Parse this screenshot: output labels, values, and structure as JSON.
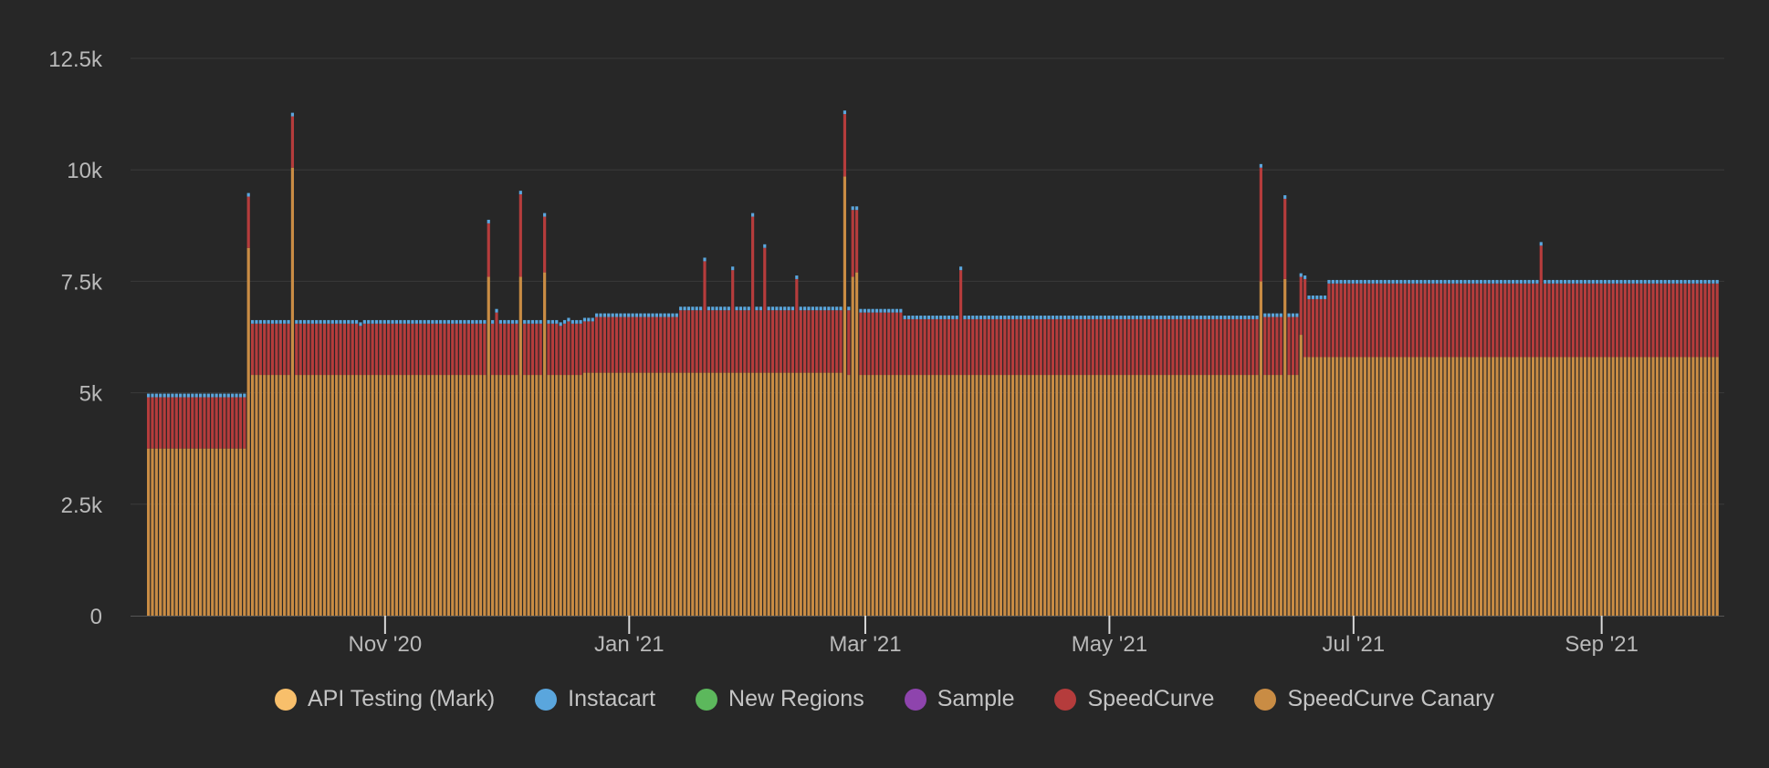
{
  "chart_data": {
    "type": "bar",
    "stacked": true,
    "xlabel": "",
    "ylabel": "",
    "ylim": [
      0,
      12500
    ],
    "y_ticks": [
      {
        "value": 0,
        "label": "0"
      },
      {
        "value": 2500,
        "label": "2.5k"
      },
      {
        "value": 5000,
        "label": "5k"
      },
      {
        "value": 7500,
        "label": "7.5k"
      },
      {
        "value": 10000,
        "label": "10k"
      },
      {
        "value": 12500,
        "label": "12.5k"
      }
    ],
    "x_range": [
      "2020-09-03",
      "2021-09-30"
    ],
    "x_ticks": [
      {
        "date": "2020-11-01",
        "label": "Nov '20"
      },
      {
        "date": "2021-01-01",
        "label": "Jan '21"
      },
      {
        "date": "2021-03-01",
        "label": "Mar '21"
      },
      {
        "date": "2021-05-01",
        "label": "May '21"
      },
      {
        "date": "2021-07-01",
        "label": "Jul '21"
      },
      {
        "date": "2021-09-01",
        "label": "Sep '21"
      }
    ],
    "grid": true,
    "legend_position": "bottom-center",
    "series": [
      {
        "name": "API Testing (Mark)",
        "color": "#f8bf6b",
        "segments": [
          {
            "from": "2020-09-03",
            "to": "2021-09-30",
            "value": 0
          }
        ]
      },
      {
        "name": "Instacart",
        "color": "#5aa6dd",
        "segments": [
          {
            "from": "2020-09-03",
            "to": "2021-09-30",
            "value": 80
          }
        ]
      },
      {
        "name": "New Regions",
        "color": "#5cb85c",
        "segments": [
          {
            "from": "2020-09-03",
            "to": "2021-09-30",
            "value": 0
          }
        ]
      },
      {
        "name": "Sample",
        "color": "#8e44ad",
        "segments": [
          {
            "from": "2020-09-03",
            "to": "2021-09-30",
            "value": 0
          }
        ]
      },
      {
        "name": "SpeedCurve",
        "color": "#b53c3c",
        "segments": [
          {
            "from": "2020-09-03",
            "to": "2020-10-17",
            "value": 1150
          },
          {
            "from": "2020-10-18",
            "to": "2020-12-23",
            "value": 1150
          },
          {
            "from": "2020-12-24",
            "to": "2021-01-13",
            "value": 1250
          },
          {
            "from": "2021-01-14",
            "to": "2021-02-26",
            "value": 1400
          },
          {
            "from": "2021-02-27",
            "to": "2021-03-10",
            "value": 1400
          },
          {
            "from": "2021-03-11",
            "to": "2021-06-08",
            "value": 1250
          },
          {
            "from": "2021-06-09",
            "to": "2021-06-24",
            "value": 1300
          },
          {
            "from": "2021-06-25",
            "to": "2021-09-30",
            "value": 1650
          }
        ],
        "spikes": [
          {
            "date": "2020-10-17",
            "value": 1150
          },
          {
            "date": "2020-10-26",
            "value": 1100
          },
          {
            "date": "2020-11-27",
            "value": 1200
          },
          {
            "date": "2020-11-29",
            "value": 1400
          },
          {
            "date": "2020-12-05",
            "value": 1850
          },
          {
            "date": "2020-12-06",
            "value": 1150
          },
          {
            "date": "2020-12-11",
            "value": 1250
          },
          {
            "date": "2020-12-15",
            "value": 1100
          },
          {
            "date": "2020-12-17",
            "value": 1200
          },
          {
            "date": "2021-01-20",
            "value": 2500
          },
          {
            "date": "2021-01-27",
            "value": 2300
          },
          {
            "date": "2021-02-01",
            "value": 3500
          },
          {
            "date": "2021-02-04",
            "value": 2800
          },
          {
            "date": "2021-02-12",
            "value": 2100
          },
          {
            "date": "2021-02-25",
            "value": 1450
          },
          {
            "date": "2021-02-26",
            "value": 1500
          },
          {
            "date": "2021-02-27",
            "value": 1400
          },
          {
            "date": "2021-03-25",
            "value": 2350
          },
          {
            "date": "2021-06-08",
            "value": 2550
          },
          {
            "date": "2021-06-14",
            "value": 1800
          },
          {
            "date": "2021-06-19",
            "value": 1750
          },
          {
            "date": "2021-08-17",
            "value": 2500
          }
        ]
      },
      {
        "name": "SpeedCurve Canary",
        "color": "#c98c44",
        "segments": [
          {
            "from": "2020-09-03",
            "to": "2020-09-28",
            "value": 3750
          },
          {
            "from": "2020-09-29",
            "to": "2020-12-20",
            "value": 5400
          },
          {
            "from": "2020-12-21",
            "to": "2021-02-24",
            "value": 5450
          },
          {
            "from": "2021-02-25",
            "to": "2021-06-08",
            "value": 5400
          },
          {
            "from": "2021-06-09",
            "to": "2021-06-18",
            "value": 5400
          },
          {
            "from": "2021-06-19",
            "to": "2021-09-30",
            "value": 5800
          }
        ],
        "spikes": [
          {
            "date": "2020-09-28",
            "value": 8250
          },
          {
            "date": "2020-10-09",
            "value": 10050
          },
          {
            "date": "2020-11-27",
            "value": 7600
          },
          {
            "date": "2020-12-05",
            "value": 7600
          },
          {
            "date": "2020-12-11",
            "value": 7700
          },
          {
            "date": "2021-02-24",
            "value": 9850
          },
          {
            "date": "2021-02-26",
            "value": 7600
          },
          {
            "date": "2021-02-27",
            "value": 7700
          },
          {
            "date": "2021-06-08",
            "value": 7500
          },
          {
            "date": "2021-06-14",
            "value": 7550
          },
          {
            "date": "2021-06-18",
            "value": 6300
          }
        ]
      }
    ]
  }
}
